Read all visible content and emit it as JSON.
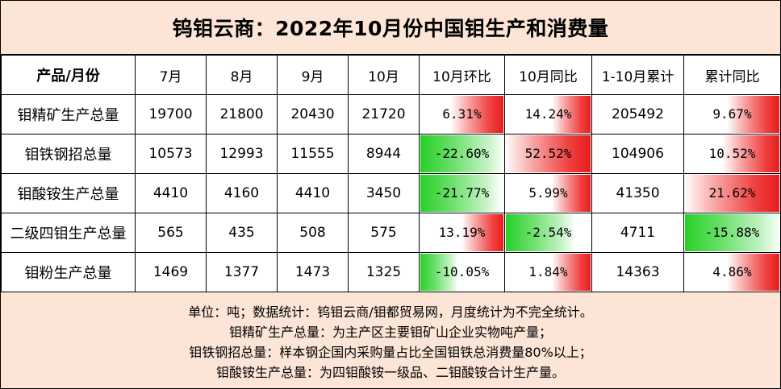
{
  "title": "钨钼云商：2022年10月份中国钼生产和消费量",
  "table": {
    "headers": [
      "产品/月份",
      "7月",
      "8月",
      "9月",
      "10月",
      "10月环比",
      "10月同比",
      "1-10月累计",
      "累计同比"
    ],
    "rows": [
      {
        "name": "钼精矿生产总量",
        "jul": "19700",
        "aug": "21800",
        "sep": "20430",
        "oct": "21720",
        "mom": "6.31%",
        "yoy": "14.24%",
        "cum": "205492",
        "cumyoy": "9.67%"
      },
      {
        "name": "钼铁钢招总量",
        "jul": "10573",
        "aug": "12993",
        "sep": "11555",
        "oct": "8944",
        "mom": "-22.60%",
        "yoy": "52.52%",
        "cum": "104906",
        "cumyoy": "10.52%"
      },
      {
        "name": "钼酸铵生产总量",
        "jul": "4410",
        "aug": "4160",
        "sep": "4410",
        "oct": "3450",
        "mom": "-21.77%",
        "yoy": "5.99%",
        "cum": "41350",
        "cumyoy": "21.62%"
      },
      {
        "name": "二级四钼生产总量",
        "jul": "565",
        "aug": "435",
        "sep": "508",
        "oct": "575",
        "mom": "13.19%",
        "yoy": "-2.54%",
        "cum": "4711",
        "cumyoy": "-15.88%"
      },
      {
        "name": "钼粉生产总量",
        "jul": "1469",
        "aug": "1377",
        "sep": "1473",
        "oct": "1325",
        "mom": "-10.05%",
        "yoy": "1.84%",
        "cum": "14363",
        "cumyoy": "4.86%"
      }
    ],
    "bar_levels": {
      "mom": [
        0.63,
        1.0,
        0.96,
        0.5,
        0.45
      ],
      "yoy": [
        0.45,
        1.0,
        0.45,
        0.8,
        0.45
      ],
      "cumyoy": [
        0.55,
        0.6,
        1.0,
        1.0,
        0.55
      ]
    },
    "colors": {
      "positive": "#e81c1c",
      "negative": "#27d027",
      "background": "#fce4d6"
    }
  },
  "notes": [
    "单位：吨；数据统计：钨钼云商/钼都贸易网，月度统计为不完全统计。",
    "钼精矿生产总量：为主产区主要钼矿山企业实物吨产量；",
    "钼铁钢招总量：样本钢企国内采购量占比全国钼铁总消费量80%以上；",
    "钼酸铵生产总量：为四钼酸铵一级品、二钼酸铵合计生产量。"
  ]
}
